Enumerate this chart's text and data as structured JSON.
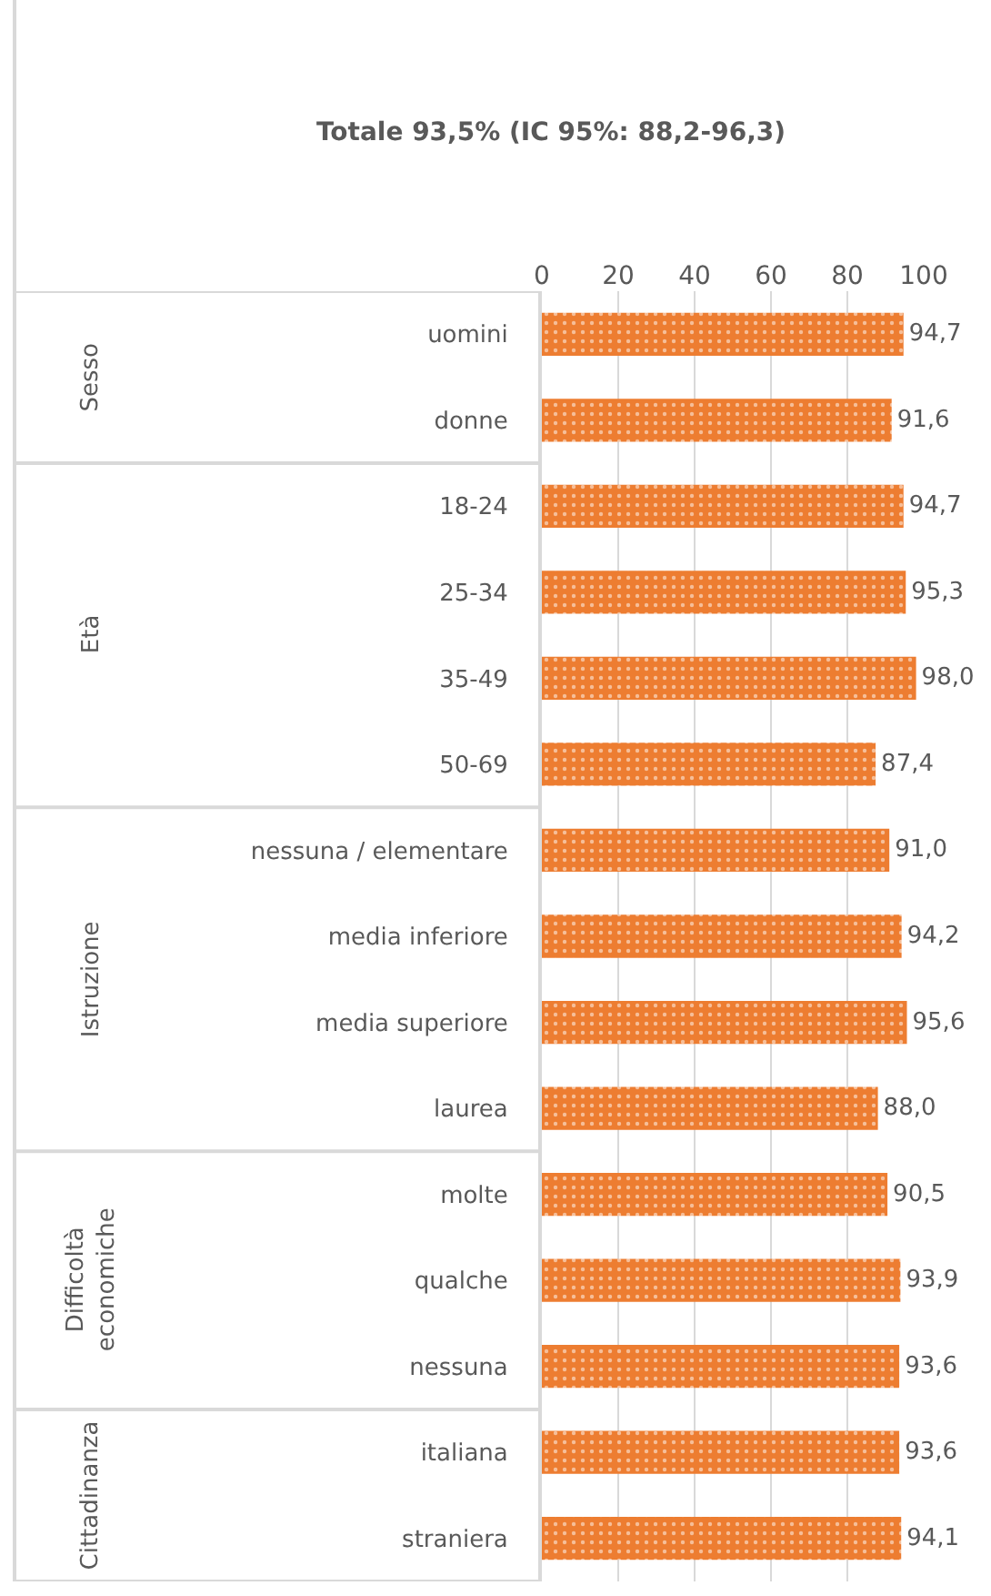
{
  "chart_data": {
    "type": "bar",
    "orientation": "horizontal",
    "title": "Totale 93,5% (IC 95%: 88,2-96,3)",
    "categories": [
      "uomini",
      "donne",
      "18-24",
      "25-34",
      "35-49",
      "50-69",
      "nessuna / elementare",
      "media inferiore",
      "media superiore",
      "laurea",
      "molte",
      "qualche",
      "nessuna",
      "italiana",
      "straniera"
    ],
    "values": [
      94.7,
      91.6,
      94.7,
      95.3,
      98.0,
      87.4,
      91.0,
      94.2,
      95.6,
      88.0,
      90.5,
      93.9,
      93.6,
      93.6,
      94.1
    ],
    "value_labels": [
      "94,7",
      "91,6",
      "94,7",
      "95,3",
      "98,0",
      "87,4",
      "91,0",
      "94,2",
      "95,6",
      "88,0",
      "90,5",
      "93,9",
      "93,6",
      "93,6",
      "94,1"
    ],
    "color": "#ed7d31",
    "xlim": [
      0,
      100
    ],
    "xticks": [
      0,
      20,
      40,
      60,
      80,
      100
    ],
    "grid": "x",
    "annotations": [
      "Sesso",
      "Età",
      "Istruzione",
      "Difficoltà economiche",
      "Cittadinanza"
    ]
  }
}
